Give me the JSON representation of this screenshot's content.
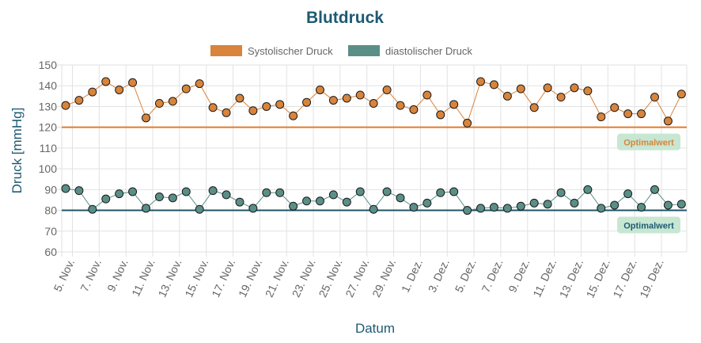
{
  "colors": {
    "systolic": "#d8843c",
    "diastolic": "#5a8f87",
    "title": "#1d5a73",
    "grid": "#e2e2e2",
    "badge_bg": "#c7e7d3",
    "badge_text_sys": "#d8843c",
    "badge_text_dia": "#1d5a73",
    "ref_sys": "#e07b2c",
    "ref_dia": "#1f5468"
  },
  "chart_data": {
    "type": "line",
    "title": "Blutdruck",
    "xlabel": "Datum",
    "ylabel": "Druck [mmHg]",
    "ylim": [
      60,
      150
    ],
    "yticks": [
      60,
      70,
      80,
      90,
      100,
      110,
      120,
      130,
      140,
      150
    ],
    "grid": true,
    "legend_position": "top-center",
    "x_start": "5. Nov.",
    "x_end": "20. Dez.",
    "x_tick_labels": [
      "5. Nov.",
      "7. Nov.",
      "9. Nov.",
      "11. Nov.",
      "13. Nov.",
      "15. Nov.",
      "17. Nov.",
      "19. Nov.",
      "21. Nov.",
      "23. Nov.",
      "25. Nov.",
      "27. Nov.",
      "29. Nov.",
      "1. Dez.",
      "3. Dez.",
      "5. Dez.",
      "7. Dez.",
      "9. Dez.",
      "11. Dez.",
      "13. Dez.",
      "15. Dez.",
      "17. Dez.",
      "19. Dez."
    ],
    "series": [
      {
        "name": "Systolischer Druck",
        "values": [
          130.5,
          133,
          137,
          142,
          138,
          141.5,
          124.5,
          131.5,
          132.5,
          138.5,
          141,
          129.5,
          127,
          134,
          128,
          130,
          131,
          125.5,
          132,
          138,
          133,
          134,
          135.5,
          131.5,
          138,
          130.5,
          128.5,
          135.5,
          126,
          131,
          122,
          142,
          140.5,
          135,
          138.5,
          129.5,
          139,
          134.5,
          139,
          137.5,
          125,
          129.5,
          126.5,
          126.5,
          134.5,
          123,
          136
        ]
      },
      {
        "name": "diastolischer Druck",
        "values": [
          90.5,
          89.5,
          80.5,
          85.5,
          88,
          89,
          81,
          86.5,
          86,
          89,
          80.5,
          89.5,
          87.5,
          84,
          81,
          88.5,
          88.5,
          82,
          84.5,
          84.5,
          87.5,
          84,
          89,
          80.5,
          89,
          86,
          81.5,
          83.5,
          88.5,
          89,
          80,
          81,
          81.5,
          81,
          82,
          83.5,
          83,
          88.5,
          83.5,
          90,
          81,
          82.5,
          88,
          81.5,
          90,
          82.5,
          83
        ]
      }
    ],
    "reference_lines": [
      {
        "label": "Optimalwert",
        "value": 120
      },
      {
        "label": "Optimalwert",
        "value": 80
      }
    ]
  }
}
